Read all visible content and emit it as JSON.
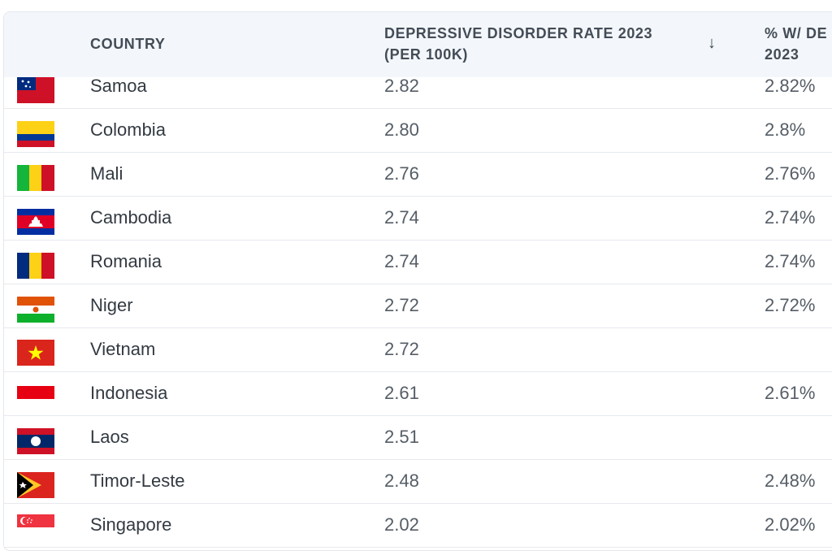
{
  "table": {
    "columns": {
      "country": "COUNTRY",
      "rate_line1": "DEPRESSIVE DISORDER RATE 2023",
      "rate_line2": "(PER 100K)",
      "pct_line1": "% W/ DE",
      "pct_line2": "2023"
    },
    "sort_icon": "arrow-down-icon",
    "rows": [
      {
        "country": "Samoa",
        "rate": "2.82",
        "pct": "2.82%",
        "flag": "samoa-flag-icon"
      },
      {
        "country": "Colombia",
        "rate": "2.80",
        "pct": "2.8%",
        "flag": "colombia-flag-icon"
      },
      {
        "country": "Mali",
        "rate": "2.76",
        "pct": "2.76%",
        "flag": "mali-flag-icon"
      },
      {
        "country": "Cambodia",
        "rate": "2.74",
        "pct": "2.74%",
        "flag": "cambodia-flag-icon"
      },
      {
        "country": "Romania",
        "rate": "2.74",
        "pct": "2.74%",
        "flag": "romania-flag-icon"
      },
      {
        "country": "Niger",
        "rate": "2.72",
        "pct": "2.72%",
        "flag": "niger-flag-icon"
      },
      {
        "country": "Vietnam",
        "rate": "2.72",
        "pct": "",
        "flag": "vietnam-flag-icon"
      },
      {
        "country": "Indonesia",
        "rate": "2.61",
        "pct": "2.61%",
        "flag": "indonesia-flag-icon"
      },
      {
        "country": "Laos",
        "rate": "2.51",
        "pct": "",
        "flag": "laos-flag-icon"
      },
      {
        "country": "Timor-Leste",
        "rate": "2.48",
        "pct": "2.48%",
        "flag": "timor-leste-flag-icon"
      },
      {
        "country": "Singapore",
        "rate": "2.02",
        "pct": "2.02%",
        "flag": "singapore-flag-icon"
      }
    ]
  }
}
